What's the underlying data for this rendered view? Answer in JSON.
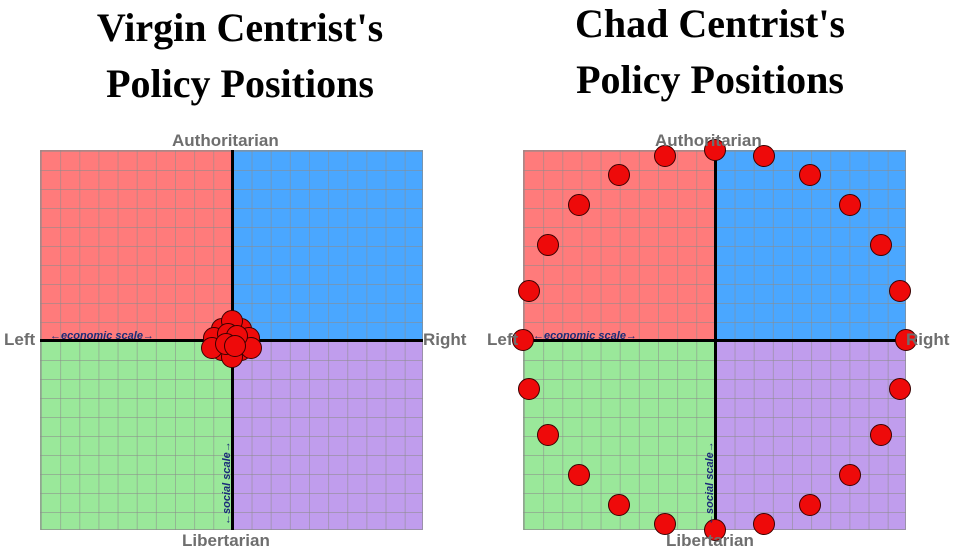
{
  "titles": {
    "left": "Virgin Centrist's\nPolicy Positions",
    "right": "Chad Centrist's\nPolicy Positions"
  },
  "axes": {
    "top": "Authoritarian",
    "bottom": "Libertarian",
    "left": "Left",
    "right": "Right",
    "economic": "←economic scale→",
    "social": "←social scale→"
  },
  "colors": {
    "auth_left": "#ff7b7b",
    "auth_right": "#4aa7ff",
    "lib_left": "#9ae89a",
    "lib_right": "#c09ded",
    "dot": "#ee0a0a"
  },
  "chart_data": [
    {
      "type": "scatter",
      "title": "Virgin Centrist's Policy Positions",
      "xlim": [
        -10,
        10
      ],
      "ylim": [
        -10,
        10
      ],
      "points": [
        [
          0,
          0
        ],
        [
          -0.5,
          0.6
        ],
        [
          0.5,
          0.6
        ],
        [
          0.9,
          0.1
        ],
        [
          0.5,
          -0.5
        ],
        [
          -0.5,
          -0.5
        ],
        [
          -0.9,
          0.1
        ],
        [
          0,
          1.0
        ],
        [
          0,
          -0.9
        ],
        [
          -1.0,
          -0.4
        ],
        [
          1.0,
          -0.4
        ],
        [
          -0.2,
          0.3
        ],
        [
          0.3,
          0.2
        ],
        [
          -0.3,
          -0.2
        ],
        [
          0.2,
          -0.3
        ]
      ]
    },
    {
      "type": "scatter",
      "title": "Chad Centrist's Policy Positions",
      "xlim": [
        -10,
        10
      ],
      "ylim": [
        -10,
        10
      ],
      "points": [
        [
          0,
          10
        ],
        [
          2.6,
          9.7
        ],
        [
          5,
          8.7
        ],
        [
          7.1,
          7.1
        ],
        [
          8.7,
          5
        ],
        [
          9.7,
          2.6
        ],
        [
          10,
          0
        ],
        [
          9.7,
          -2.6
        ],
        [
          8.7,
          -5
        ],
        [
          7.1,
          -7.1
        ],
        [
          5,
          -8.7
        ],
        [
          2.6,
          -9.7
        ],
        [
          0,
          -10
        ],
        [
          -2.6,
          -9.7
        ],
        [
          -5,
          -8.7
        ],
        [
          -7.1,
          -7.1
        ],
        [
          -8.7,
          -5
        ],
        [
          -9.7,
          -2.6
        ],
        [
          -10,
          0
        ],
        [
          -9.7,
          2.6
        ],
        [
          -8.7,
          5
        ],
        [
          -7.1,
          7.1
        ],
        [
          -5,
          8.7
        ],
        [
          -2.6,
          9.7
        ]
      ]
    }
  ]
}
